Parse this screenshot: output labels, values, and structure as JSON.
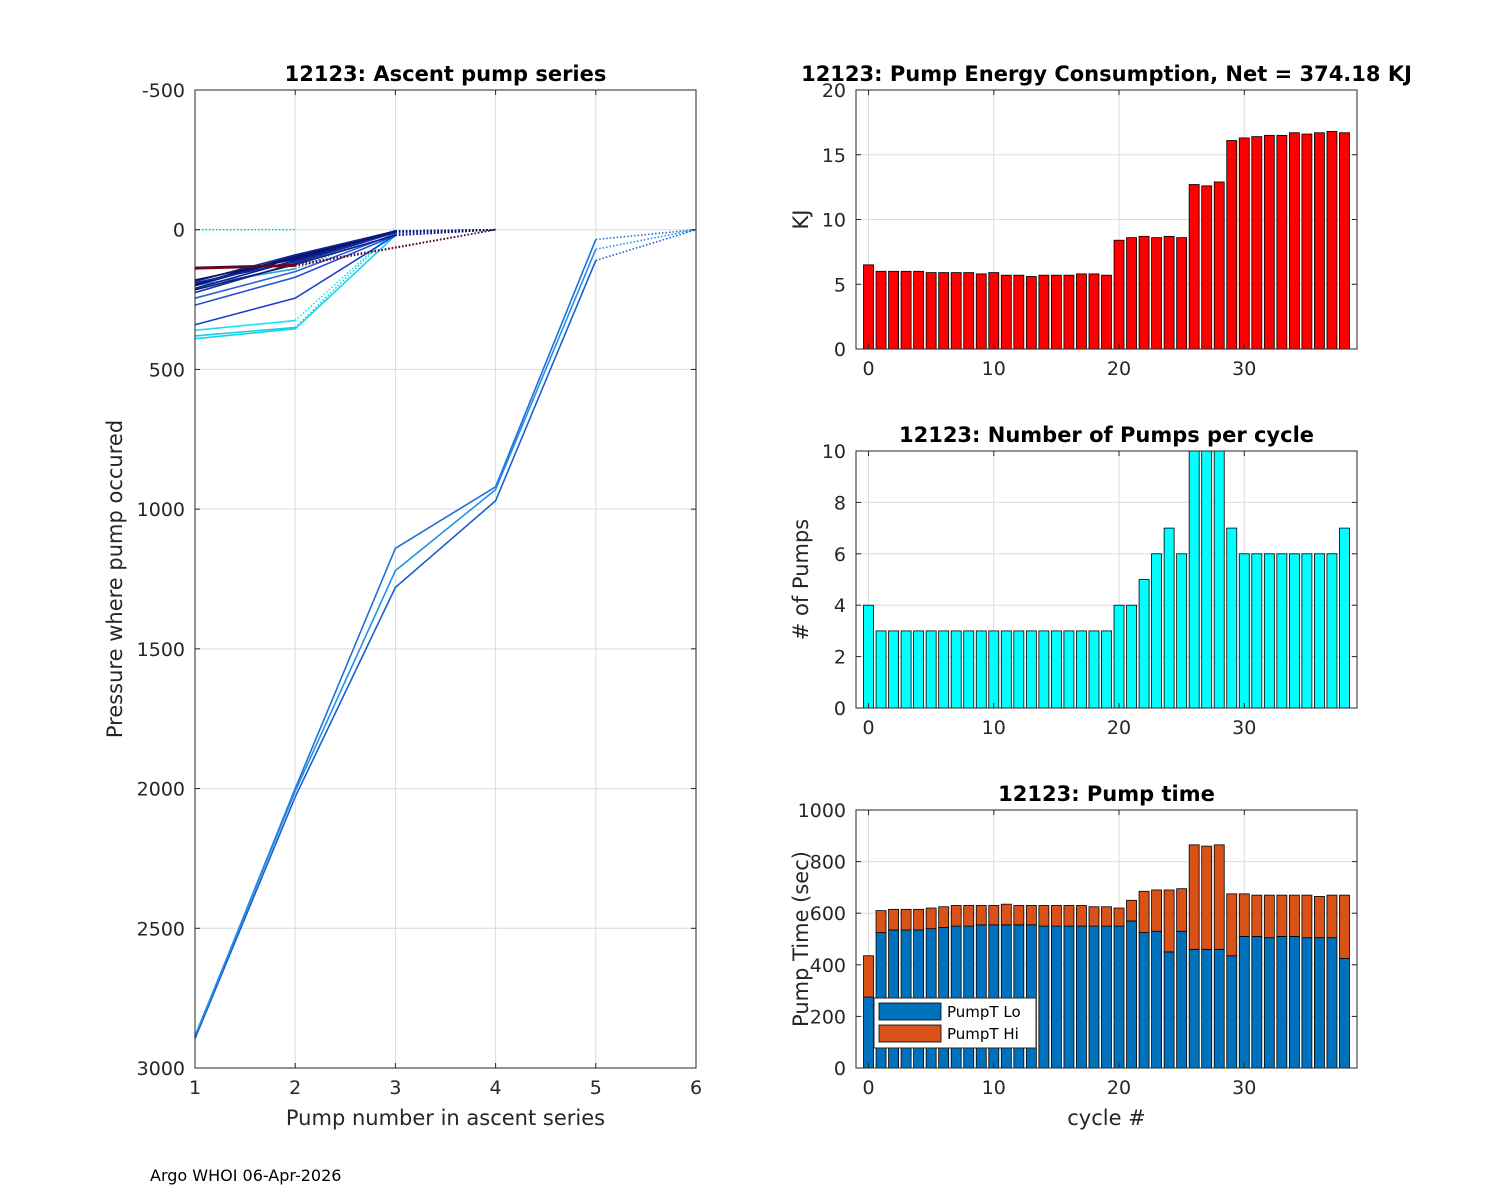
{
  "footer": "Argo WHOI 06-Apr-2026",
  "colors": {
    "energy": "#ff0000",
    "pumps": "#00ffff",
    "lo": "#0072bd",
    "hi": "#d95319",
    "grid": "#dcdcdc"
  },
  "chart_data": [
    {
      "id": "ascent",
      "type": "line",
      "title": "12123: Ascent pump series",
      "xlabel": "Pump number in ascent series",
      "ylabel": "Pressure where pump occured",
      "xlim": [
        1,
        6
      ],
      "ylim": [
        -500,
        3000
      ],
      "y_reversed": true,
      "xticks": [
        1,
        2,
        3,
        4,
        5,
        6
      ],
      "yticks": [
        -500,
        0,
        500,
        1000,
        1500,
        2000,
        2500,
        3000
      ],
      "series": [
        {
          "color": "#1f6fdc",
          "solid": [
            [
              1,
              2890
            ],
            [
              2,
              2000
            ],
            [
              3,
              1140
            ],
            [
              4,
              920
            ],
            [
              5,
              35
            ]
          ],
          "dotted": [
            [
              5,
              35
            ],
            [
              6,
              0
            ]
          ]
        },
        {
          "color": "#1a5fd0",
          "solid": [
            [
              1,
              2895
            ],
            [
              2,
              2030
            ],
            [
              3,
              1280
            ],
            [
              4,
              970
            ],
            [
              5,
              110
            ]
          ],
          "dotted": [
            [
              5,
              110
            ],
            [
              6,
              0
            ]
          ]
        },
        {
          "color": "#2490e8",
          "solid": [
            [
              1,
              2885
            ],
            [
              2,
              2010
            ],
            [
              3,
              1220
            ],
            [
              4,
              930
            ],
            [
              5,
              70
            ]
          ],
          "dotted": [
            [
              5,
              70
            ],
            [
              6,
              0
            ]
          ]
        },
        {
          "color": "#00cccc",
          "solid": [],
          "dotted": [
            [
              1,
              0
            ],
            [
              2,
              0
            ]
          ]
        },
        {
          "color": "#1ec8e0",
          "solid": [
            [
              1,
              380
            ],
            [
              2,
              350
            ]
          ],
          "dotted": [
            [
              2,
              350
            ],
            [
              3,
              0
            ]
          ]
        },
        {
          "color": "#18e0f0",
          "solid": [
            [
              1,
              360
            ],
            [
              2,
              325
            ]
          ],
          "dotted": [
            [
              2,
              325
            ],
            [
              3,
              0
            ]
          ]
        },
        {
          "color": "#10d8e8",
          "solid": [
            [
              1,
              390
            ],
            [
              2,
              355
            ],
            [
              3,
              20
            ]
          ],
          "dotted": [
            [
              3,
              20
            ],
            [
              4,
              0
            ]
          ]
        },
        {
          "color": "#20a8c8",
          "solid": [
            [
              1,
              200
            ],
            [
              2,
              140
            ]
          ],
          "dotted": [
            [
              2,
              140
            ],
            [
              3,
              0
            ]
          ]
        },
        {
          "color": "#1a40d0",
          "solid": [
            [
              1,
              340
            ],
            [
              2,
              245
            ],
            [
              3,
              20
            ]
          ],
          "dotted": [
            [
              3,
              20
            ],
            [
              4,
              0
            ]
          ]
        },
        {
          "color": "#2050d8",
          "solid": [
            [
              1,
              270
            ],
            [
              2,
              170
            ],
            [
              3,
              20
            ]
          ],
          "dotted": [
            [
              3,
              20
            ],
            [
              4,
              0
            ]
          ]
        },
        {
          "color": "#2a60e0",
          "solid": [
            [
              1,
              245
            ],
            [
              2,
              150
            ],
            [
              3,
              15
            ]
          ],
          "dotted": [
            [
              3,
              15
            ],
            [
              4,
              0
            ]
          ]
        },
        {
          "color": "#1030b0",
          "solid": [
            [
              1,
              225
            ],
            [
              2,
              120
            ],
            [
              3,
              10
            ]
          ],
          "dotted": [
            [
              3,
              10
            ],
            [
              4,
              0
            ]
          ]
        },
        {
          "color": "#0a1e90",
          "solid": [
            [
              1,
              210
            ],
            [
              2,
              110
            ],
            [
              3,
              10
            ]
          ],
          "dotted": [
            [
              3,
              10
            ],
            [
              4,
              0
            ]
          ]
        },
        {
          "color": "#081880",
          "solid": [
            [
              1,
              200
            ],
            [
              2,
              100
            ],
            [
              3,
              5
            ]
          ],
          "dotted": [
            [
              3,
              5
            ],
            [
              4,
              0
            ]
          ]
        },
        {
          "color": "#061070",
          "solid": [
            [
              1,
              195
            ],
            [
              2,
              95
            ],
            [
              3,
              5
            ]
          ],
          "dotted": [
            [
              3,
              5
            ],
            [
              4,
              0
            ]
          ]
        },
        {
          "color": "#0c2698",
          "solid": [
            [
              1,
              185
            ],
            [
              2,
              90
            ],
            [
              3,
              5
            ]
          ],
          "dotted": [
            [
              3,
              5
            ],
            [
              4,
              0
            ]
          ]
        },
        {
          "color": "#14289c",
          "solid": [
            [
              1,
              190
            ],
            [
              2,
              115
            ],
            [
              3,
              10
            ]
          ],
          "dotted": [
            [
              3,
              10
            ],
            [
              4,
              0
            ]
          ]
        },
        {
          "color": "#101c78",
          "solid": [
            [
              1,
              215
            ],
            [
              2,
              125
            ],
            [
              3,
              20
            ]
          ],
          "dotted": [
            [
              3,
              20
            ],
            [
              4,
              0
            ]
          ]
        },
        {
          "color": "#0a1460",
          "solid": [
            [
              1,
              180
            ],
            [
              2,
              105
            ],
            [
              3,
              5
            ]
          ],
          "dotted": [
            [
              3,
              5
            ],
            [
              4,
              0
            ]
          ]
        },
        {
          "color": "#800000",
          "solid": [
            [
              1,
              140
            ],
            [
              2,
              130
            ]
          ],
          "dotted": [
            [
              2,
              130
            ],
            [
              4,
              0
            ]
          ]
        },
        {
          "color": "#4a0a40",
          "solid": [
            [
              1,
              135
            ],
            [
              2,
              125
            ]
          ],
          "dotted": [
            [
              2,
              125
            ],
            [
              4,
              0
            ]
          ]
        }
      ]
    },
    {
      "id": "energy",
      "type": "bar",
      "title": "12123: Pump Energy Consumption,  Net = 374.18 KJ",
      "xlabel": "",
      "ylabel": "KJ",
      "xlim": [
        -1,
        39
      ],
      "ylim": [
        0,
        20
      ],
      "xticks": [
        0,
        10,
        20,
        30
      ],
      "yticks": [
        0,
        5,
        10,
        15,
        20
      ],
      "x": [
        0,
        1,
        2,
        3,
        4,
        5,
        6,
        7,
        8,
        9,
        10,
        11,
        12,
        13,
        14,
        15,
        16,
        17,
        18,
        19,
        20,
        21,
        22,
        23,
        24,
        25,
        26,
        27,
        28,
        29,
        30,
        31,
        32,
        33,
        34,
        35,
        36,
        37,
        38
      ],
      "values": [
        6.5,
        6.0,
        6.0,
        6.0,
        6.0,
        5.9,
        5.9,
        5.9,
        5.9,
        5.8,
        5.9,
        5.7,
        5.7,
        5.6,
        5.7,
        5.7,
        5.7,
        5.8,
        5.8,
        5.7,
        8.4,
        8.6,
        8.7,
        8.6,
        8.7,
        8.6,
        12.7,
        12.6,
        12.9,
        16.1,
        16.3,
        16.4,
        16.5,
        16.5,
        16.7,
        16.6,
        16.7,
        16.8,
        16.7
      ]
    },
    {
      "id": "pumps",
      "type": "bar",
      "title": "12123: Number of Pumps per cycle",
      "xlabel": "",
      "ylabel": "# of Pumps",
      "xlim": [
        -1,
        39
      ],
      "ylim": [
        0,
        10
      ],
      "xticks": [
        0,
        10,
        20,
        30
      ],
      "yticks": [
        0,
        2,
        4,
        6,
        8,
        10
      ],
      "x": [
        0,
        1,
        2,
        3,
        4,
        5,
        6,
        7,
        8,
        9,
        10,
        11,
        12,
        13,
        14,
        15,
        16,
        17,
        18,
        19,
        20,
        21,
        22,
        23,
        24,
        25,
        26,
        27,
        28,
        29,
        30,
        31,
        32,
        33,
        34,
        35,
        36,
        37,
        38
      ],
      "values": [
        4,
        3,
        3,
        3,
        3,
        3,
        3,
        3,
        3,
        3,
        3,
        3,
        3,
        3,
        3,
        3,
        3,
        3,
        3,
        3,
        4,
        4,
        5,
        6,
        7,
        6,
        10,
        10,
        10,
        7,
        6,
        6,
        6,
        6,
        6,
        6,
        6,
        6,
        7
      ]
    },
    {
      "id": "pumptime",
      "type": "bar",
      "stacked": true,
      "title": "12123: Pump time",
      "xlabel": "cycle #",
      "ylabel": "Pump Time (sec)",
      "xlim": [
        -1,
        39
      ],
      "ylim": [
        0,
        1000
      ],
      "xticks": [
        0,
        10,
        20,
        30
      ],
      "yticks": [
        0,
        200,
        400,
        600,
        800,
        1000
      ],
      "x": [
        0,
        1,
        2,
        3,
        4,
        5,
        6,
        7,
        8,
        9,
        10,
        11,
        12,
        13,
        14,
        15,
        16,
        17,
        18,
        19,
        20,
        21,
        22,
        23,
        24,
        25,
        26,
        27,
        28,
        29,
        30,
        31,
        32,
        33,
        34,
        35,
        36,
        37,
        38
      ],
      "legend": [
        "PumpT Lo",
        "PumpT Hi"
      ],
      "legend_position": "bottom-left",
      "series": [
        {
          "name": "PumpT Lo",
          "values": [
            275,
            525,
            535,
            535,
            535,
            540,
            545,
            550,
            550,
            555,
            555,
            555,
            555,
            555,
            550,
            550,
            550,
            550,
            550,
            550,
            550,
            570,
            525,
            530,
            450,
            530,
            460,
            460,
            460,
            435,
            510,
            510,
            505,
            510,
            510,
            505,
            505,
            505,
            425
          ]
        },
        {
          "name": "PumpT Hi",
          "values": [
            160,
            85,
            80,
            80,
            80,
            80,
            80,
            80,
            80,
            75,
            75,
            80,
            75,
            75,
            80,
            80,
            80,
            80,
            75,
            75,
            70,
            80,
            160,
            160,
            240,
            165,
            405,
            400,
            405,
            240,
            165,
            160,
            165,
            160,
            160,
            165,
            160,
            165,
            245
          ]
        }
      ]
    }
  ]
}
